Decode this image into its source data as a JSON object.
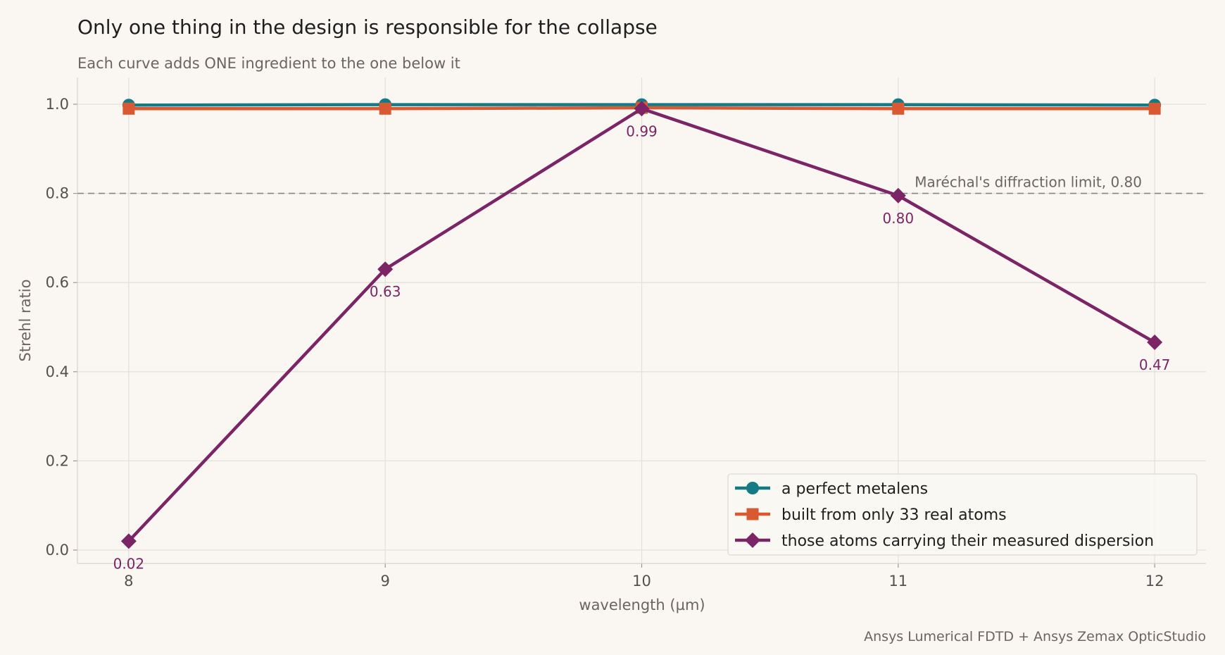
{
  "chart_data": {
    "type": "line",
    "title": "Only one thing in the design is responsible for the collapse",
    "subtitle": "Each curve adds ONE ingredient to the one below it",
    "xlabel": "wavelength  (µm)",
    "ylabel": "Strehl ratio",
    "x": [
      8,
      9,
      10,
      11,
      12
    ],
    "x_ticks": [
      8,
      9,
      10,
      11,
      12
    ],
    "y_ticks": [
      0.0,
      0.2,
      0.4,
      0.6,
      0.8,
      1.0
    ],
    "xlim": [
      7.8,
      12.2
    ],
    "ylim": [
      -0.03,
      1.06
    ],
    "grid": true,
    "legend_position": "bottom-right",
    "series": [
      {
        "name": "a perfect metalens",
        "values": [
          0.998,
          0.999,
          0.999,
          0.999,
          0.998
        ],
        "color": "#147a85",
        "marker": "circle"
      },
      {
        "name": "built from only 33 real atoms",
        "values": [
          0.99,
          0.99,
          0.992,
          0.99,
          0.99
        ],
        "color": "#d95a32",
        "marker": "square"
      },
      {
        "name": "those atoms carrying their measured dispersion",
        "values": [
          0.02,
          0.63,
          0.99,
          0.795,
          0.466
        ],
        "color": "#7b2566",
        "marker": "diamond",
        "labels": [
          "0.02",
          "0.63",
          "0.99",
          "0.80",
          "0.47"
        ]
      }
    ],
    "reference_line": {
      "y": 0.8,
      "label": "Maréchal's diffraction limit, 0.80"
    },
    "source": "Ansys Lumerical FDTD + Ansys Zemax OpticStudio"
  }
}
